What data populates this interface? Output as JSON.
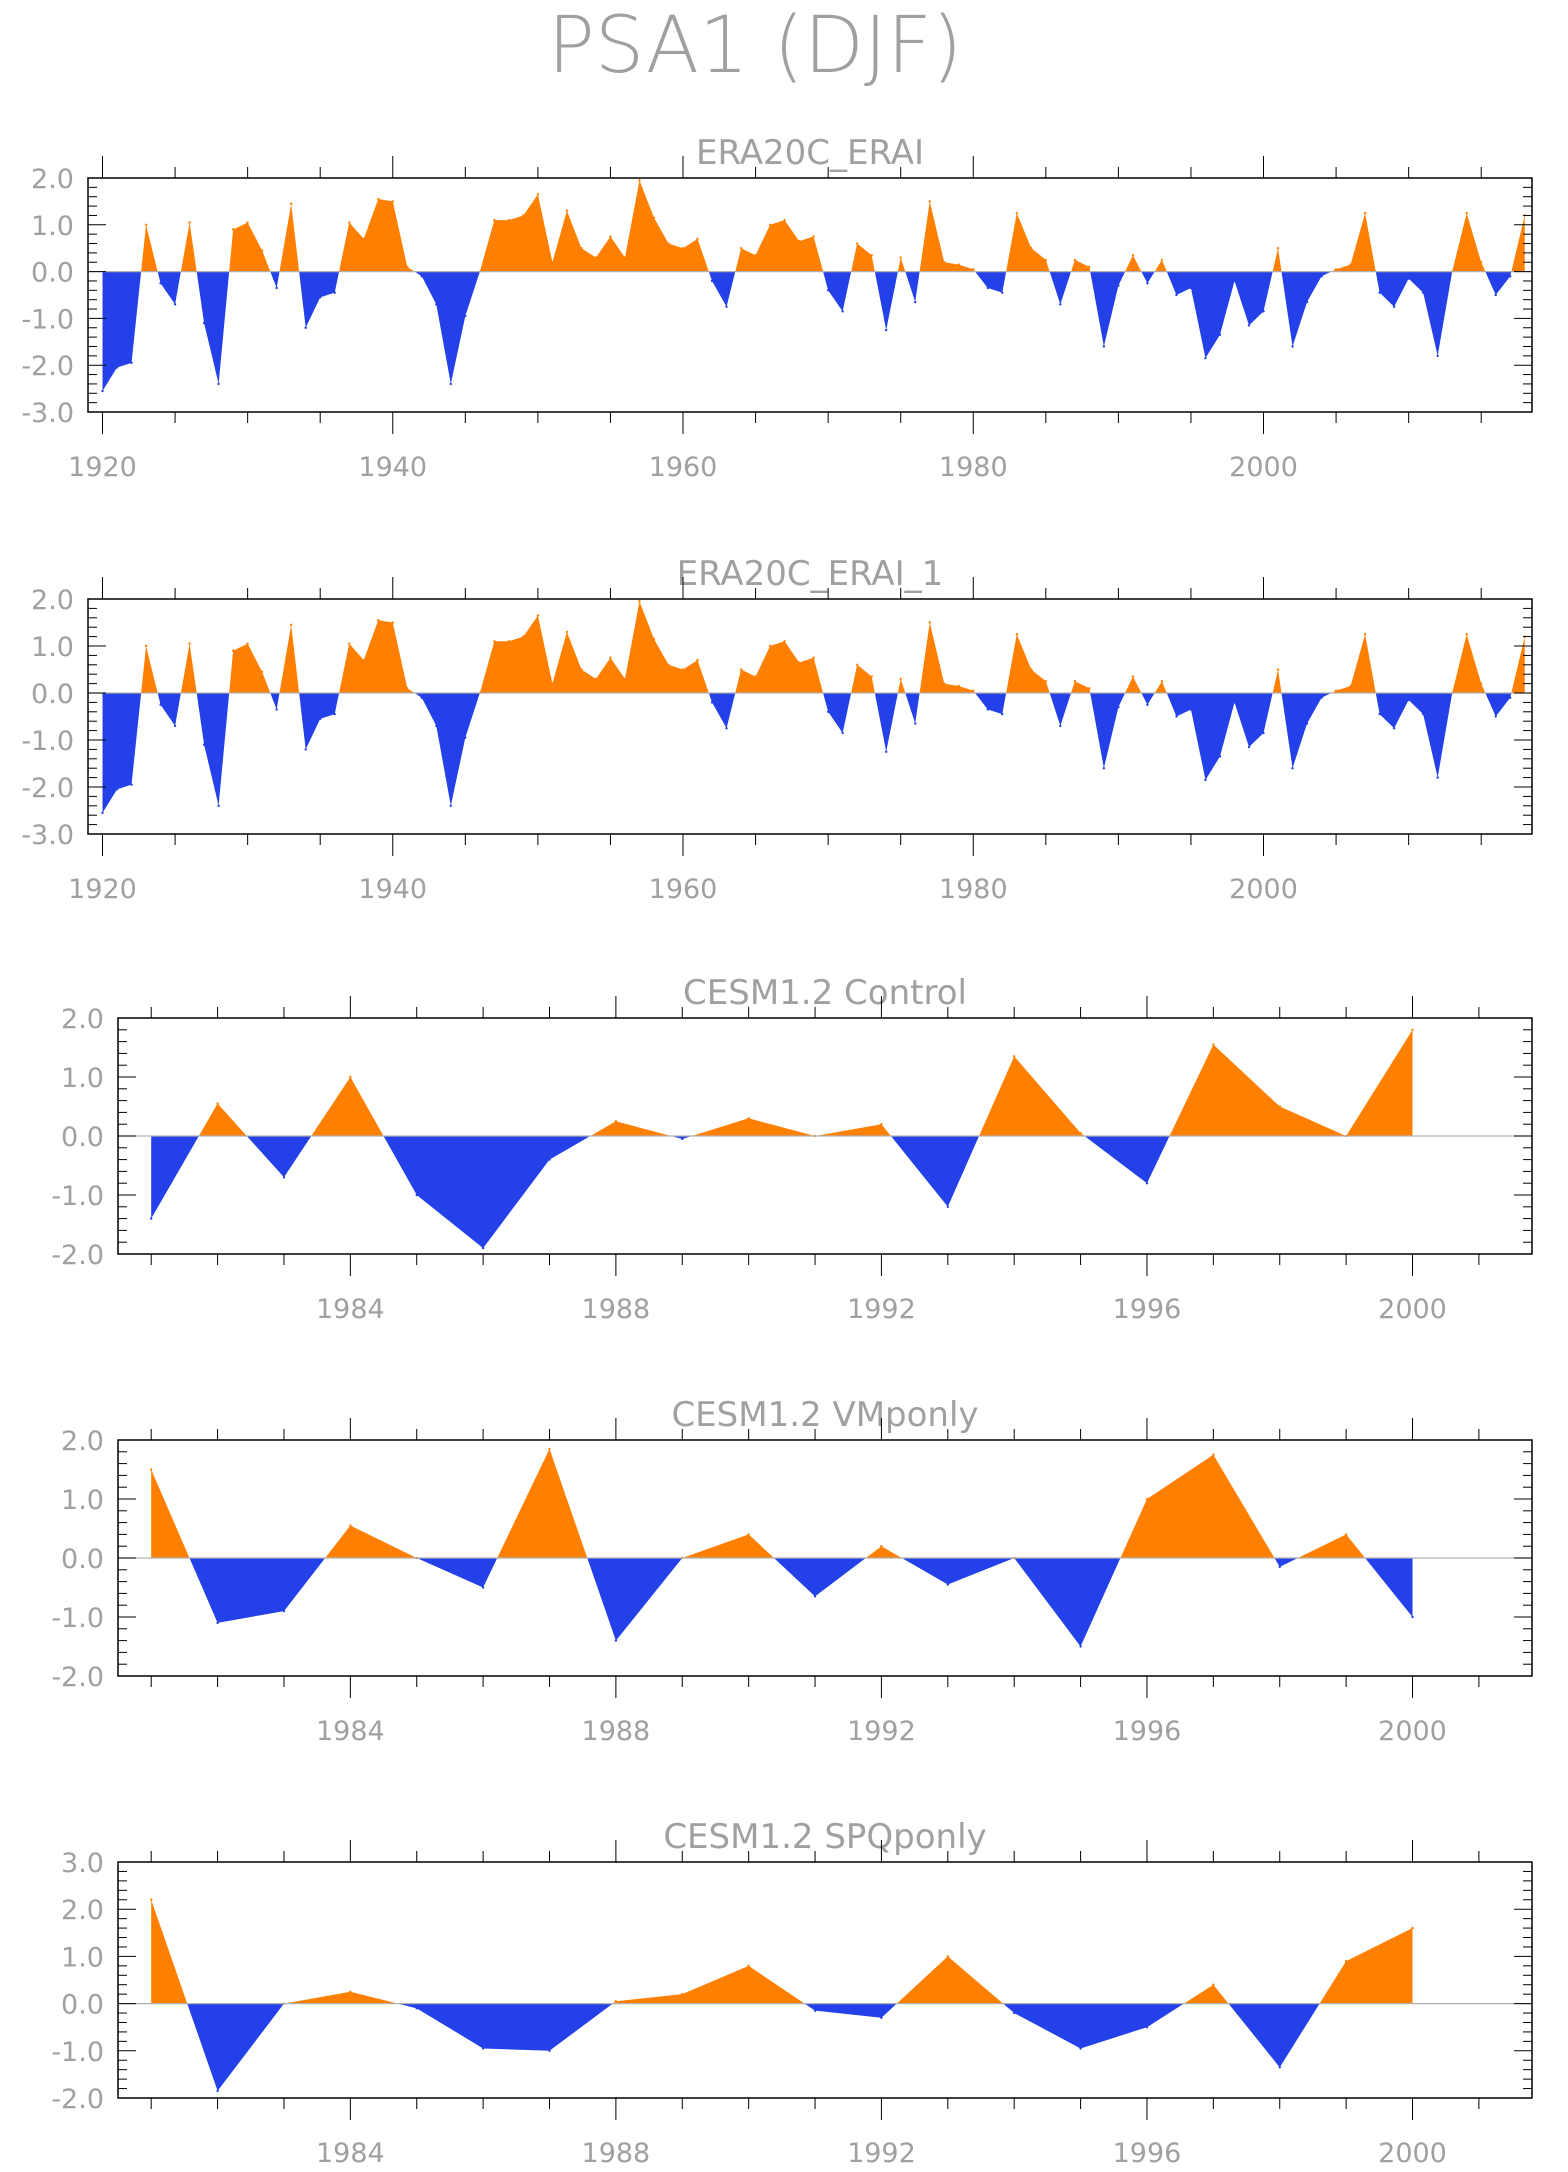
{
  "figure_title": "PSA1 (DJF)",
  "colors": {
    "positive": "#ff8000",
    "negative": "#2440e8",
    "axis": "#000000",
    "label": "#a0a0a0"
  },
  "chart_data": [
    {
      "type": "area",
      "title": "ERA20C_ERAI",
      "xlim": [
        1919,
        2018.5
      ],
      "ylim": [
        -3.0,
        2.0
      ],
      "yticks": [
        2.0,
        1.0,
        0.0,
        -1.0,
        -2.0,
        -3.0
      ],
      "ytick_labels": [
        "2.0",
        "1.0",
        "0.0",
        "-1.0",
        "-2.0",
        "-3.0"
      ],
      "xticks": [
        1920,
        1940,
        1960,
        1980,
        2000
      ],
      "xtick_labels": [
        "1920",
        "1940",
        "1960",
        "1980",
        "2000"
      ],
      "x_start": 1920,
      "values": [
        -2.55,
        -2.05,
        -1.95,
        1.0,
        -0.25,
        -0.7,
        1.05,
        -1.1,
        -2.4,
        0.9,
        1.05,
        0.45,
        -0.35,
        1.45,
        -1.2,
        -0.55,
        -0.45,
        1.05,
        0.7,
        1.55,
        1.5,
        0.1,
        -0.1,
        -0.7,
        -2.4,
        -0.95,
        0.0,
        1.1,
        1.1,
        1.2,
        1.65,
        0.2,
        1.3,
        0.5,
        0.3,
        0.75,
        0.3,
        1.95,
        1.15,
        0.6,
        0.5,
        0.7,
        -0.2,
        -0.75,
        0.5,
        0.35,
        1.0,
        1.1,
        0.65,
        0.75,
        -0.4,
        -0.85,
        0.6,
        0.35,
        -1.25,
        0.3,
        -0.65,
        1.5,
        0.2,
        0.15,
        0.05,
        -0.35,
        -0.45,
        1.25,
        0.5,
        0.25,
        -0.7,
        0.25,
        0.1,
        -1.6,
        -0.3,
        0.35,
        -0.25,
        0.25,
        -0.5,
        -0.35,
        -1.85,
        -1.35,
        -0.2,
        -1.15,
        -0.85,
        0.5,
        -1.6,
        -0.65,
        -0.1,
        0.05,
        0.15,
        1.25,
        -0.45,
        -0.75,
        -0.15,
        -0.45,
        -1.8,
        0.0,
        1.25,
        0.2,
        -0.5,
        -0.1,
        1.2
      ]
    },
    {
      "type": "area",
      "title": "ERA20C_ERAI_1",
      "xlim": [
        1919,
        2018.5
      ],
      "ylim": [
        -3.0,
        2.0
      ],
      "yticks": [
        2.0,
        1.0,
        0.0,
        -1.0,
        -2.0,
        -3.0
      ],
      "ytick_labels": [
        "2.0",
        "1.0",
        "0.0",
        "-1.0",
        "-2.0",
        "-3.0"
      ],
      "xticks": [
        1920,
        1940,
        1960,
        1980,
        2000
      ],
      "xtick_labels": [
        "1920",
        "1940",
        "1960",
        "1980",
        "2000"
      ],
      "x_start": 1920,
      "values": [
        -2.55,
        -2.05,
        -1.95,
        1.0,
        -0.25,
        -0.7,
        1.05,
        -1.1,
        -2.4,
        0.9,
        1.05,
        0.45,
        -0.35,
        1.45,
        -1.2,
        -0.55,
        -0.45,
        1.05,
        0.7,
        1.55,
        1.5,
        0.1,
        -0.1,
        -0.7,
        -2.4,
        -0.95,
        0.0,
        1.1,
        1.1,
        1.2,
        1.65,
        0.2,
        1.3,
        0.5,
        0.3,
        0.75,
        0.3,
        1.95,
        1.15,
        0.6,
        0.5,
        0.7,
        -0.2,
        -0.75,
        0.5,
        0.35,
        1.0,
        1.1,
        0.65,
        0.75,
        -0.4,
        -0.85,
        0.6,
        0.35,
        -1.25,
        0.3,
        -0.65,
        1.5,
        0.2,
        0.15,
        0.05,
        -0.35,
        -0.45,
        1.25,
        0.5,
        0.25,
        -0.7,
        0.25,
        0.1,
        -1.6,
        -0.3,
        0.35,
        -0.25,
        0.25,
        -0.5,
        -0.35,
        -1.85,
        -1.35,
        -0.2,
        -1.15,
        -0.85,
        0.5,
        -1.6,
        -0.65,
        -0.1,
        0.05,
        0.15,
        1.25,
        -0.45,
        -0.75,
        -0.15,
        -0.45,
        -1.8,
        0.0,
        1.25,
        0.2,
        -0.5,
        -0.1,
        1.2
      ]
    },
    {
      "type": "area",
      "title": "CESM1.2 Control",
      "xlim": [
        1980.5,
        2001.8
      ],
      "ylim": [
        -2.0,
        2.0
      ],
      "yticks": [
        2.0,
        1.0,
        0.0,
        -1.0,
        -2.0
      ],
      "ytick_labels": [
        "2.0",
        "1.0",
        "0.0",
        "-1.0",
        "-2.0"
      ],
      "xticks": [
        1984,
        1988,
        1992,
        1996,
        2000
      ],
      "xtick_labels": [
        "1984",
        "1988",
        "1992",
        "1996",
        "2000"
      ],
      "x_start": 1981,
      "values": [
        -1.4,
        0.55,
        -0.7,
        1.0,
        -1.0,
        -1.9,
        -0.4,
        0.25,
        -0.05,
        0.3,
        0.0,
        0.2,
        -1.2,
        1.35,
        0.05,
        -0.8,
        1.55,
        0.5,
        0.0,
        1.8
      ]
    },
    {
      "type": "area",
      "title": "CESM1.2 VMponly",
      "xlim": [
        1980.5,
        2001.8
      ],
      "ylim": [
        -2.0,
        2.0
      ],
      "yticks": [
        2.0,
        1.0,
        0.0,
        -1.0,
        -2.0
      ],
      "ytick_labels": [
        "2.0",
        "1.0",
        "0.0",
        "-1.0",
        "-2.0"
      ],
      "xticks": [
        1984,
        1988,
        1992,
        1996,
        2000
      ],
      "xtick_labels": [
        "1984",
        "1988",
        "1992",
        "1996",
        "2000"
      ],
      "x_start": 1981,
      "values": [
        1.5,
        -1.1,
        -0.9,
        0.55,
        0.0,
        -0.5,
        1.85,
        -1.4,
        0.0,
        0.4,
        -0.65,
        0.2,
        -0.45,
        0.0,
        -1.5,
        1.0,
        1.75,
        -0.15,
        0.4,
        -1.0
      ]
    },
    {
      "type": "area",
      "title": "CESM1.2 SPQponly",
      "xlim": [
        1980.5,
        2001.8
      ],
      "ylim": [
        -2.0,
        3.0
      ],
      "yticks": [
        3.0,
        2.0,
        1.0,
        0.0,
        -1.0,
        -2.0
      ],
      "ytick_labels": [
        "3.0",
        "2.0",
        "1.0",
        "0.0",
        "-1.0",
        "-2.0"
      ],
      "xticks": [
        1984,
        1988,
        1992,
        1996,
        2000
      ],
      "xtick_labels": [
        "1984",
        "1988",
        "1992",
        "1996",
        "2000"
      ],
      "x_start": 1981,
      "values": [
        2.2,
        -1.85,
        0.0,
        0.25,
        -0.1,
        -0.95,
        -1.0,
        0.05,
        0.2,
        0.8,
        -0.15,
        -0.3,
        1.0,
        -0.2,
        -0.95,
        -0.5,
        0.4,
        -1.35,
        0.9,
        1.6
      ]
    }
  ]
}
